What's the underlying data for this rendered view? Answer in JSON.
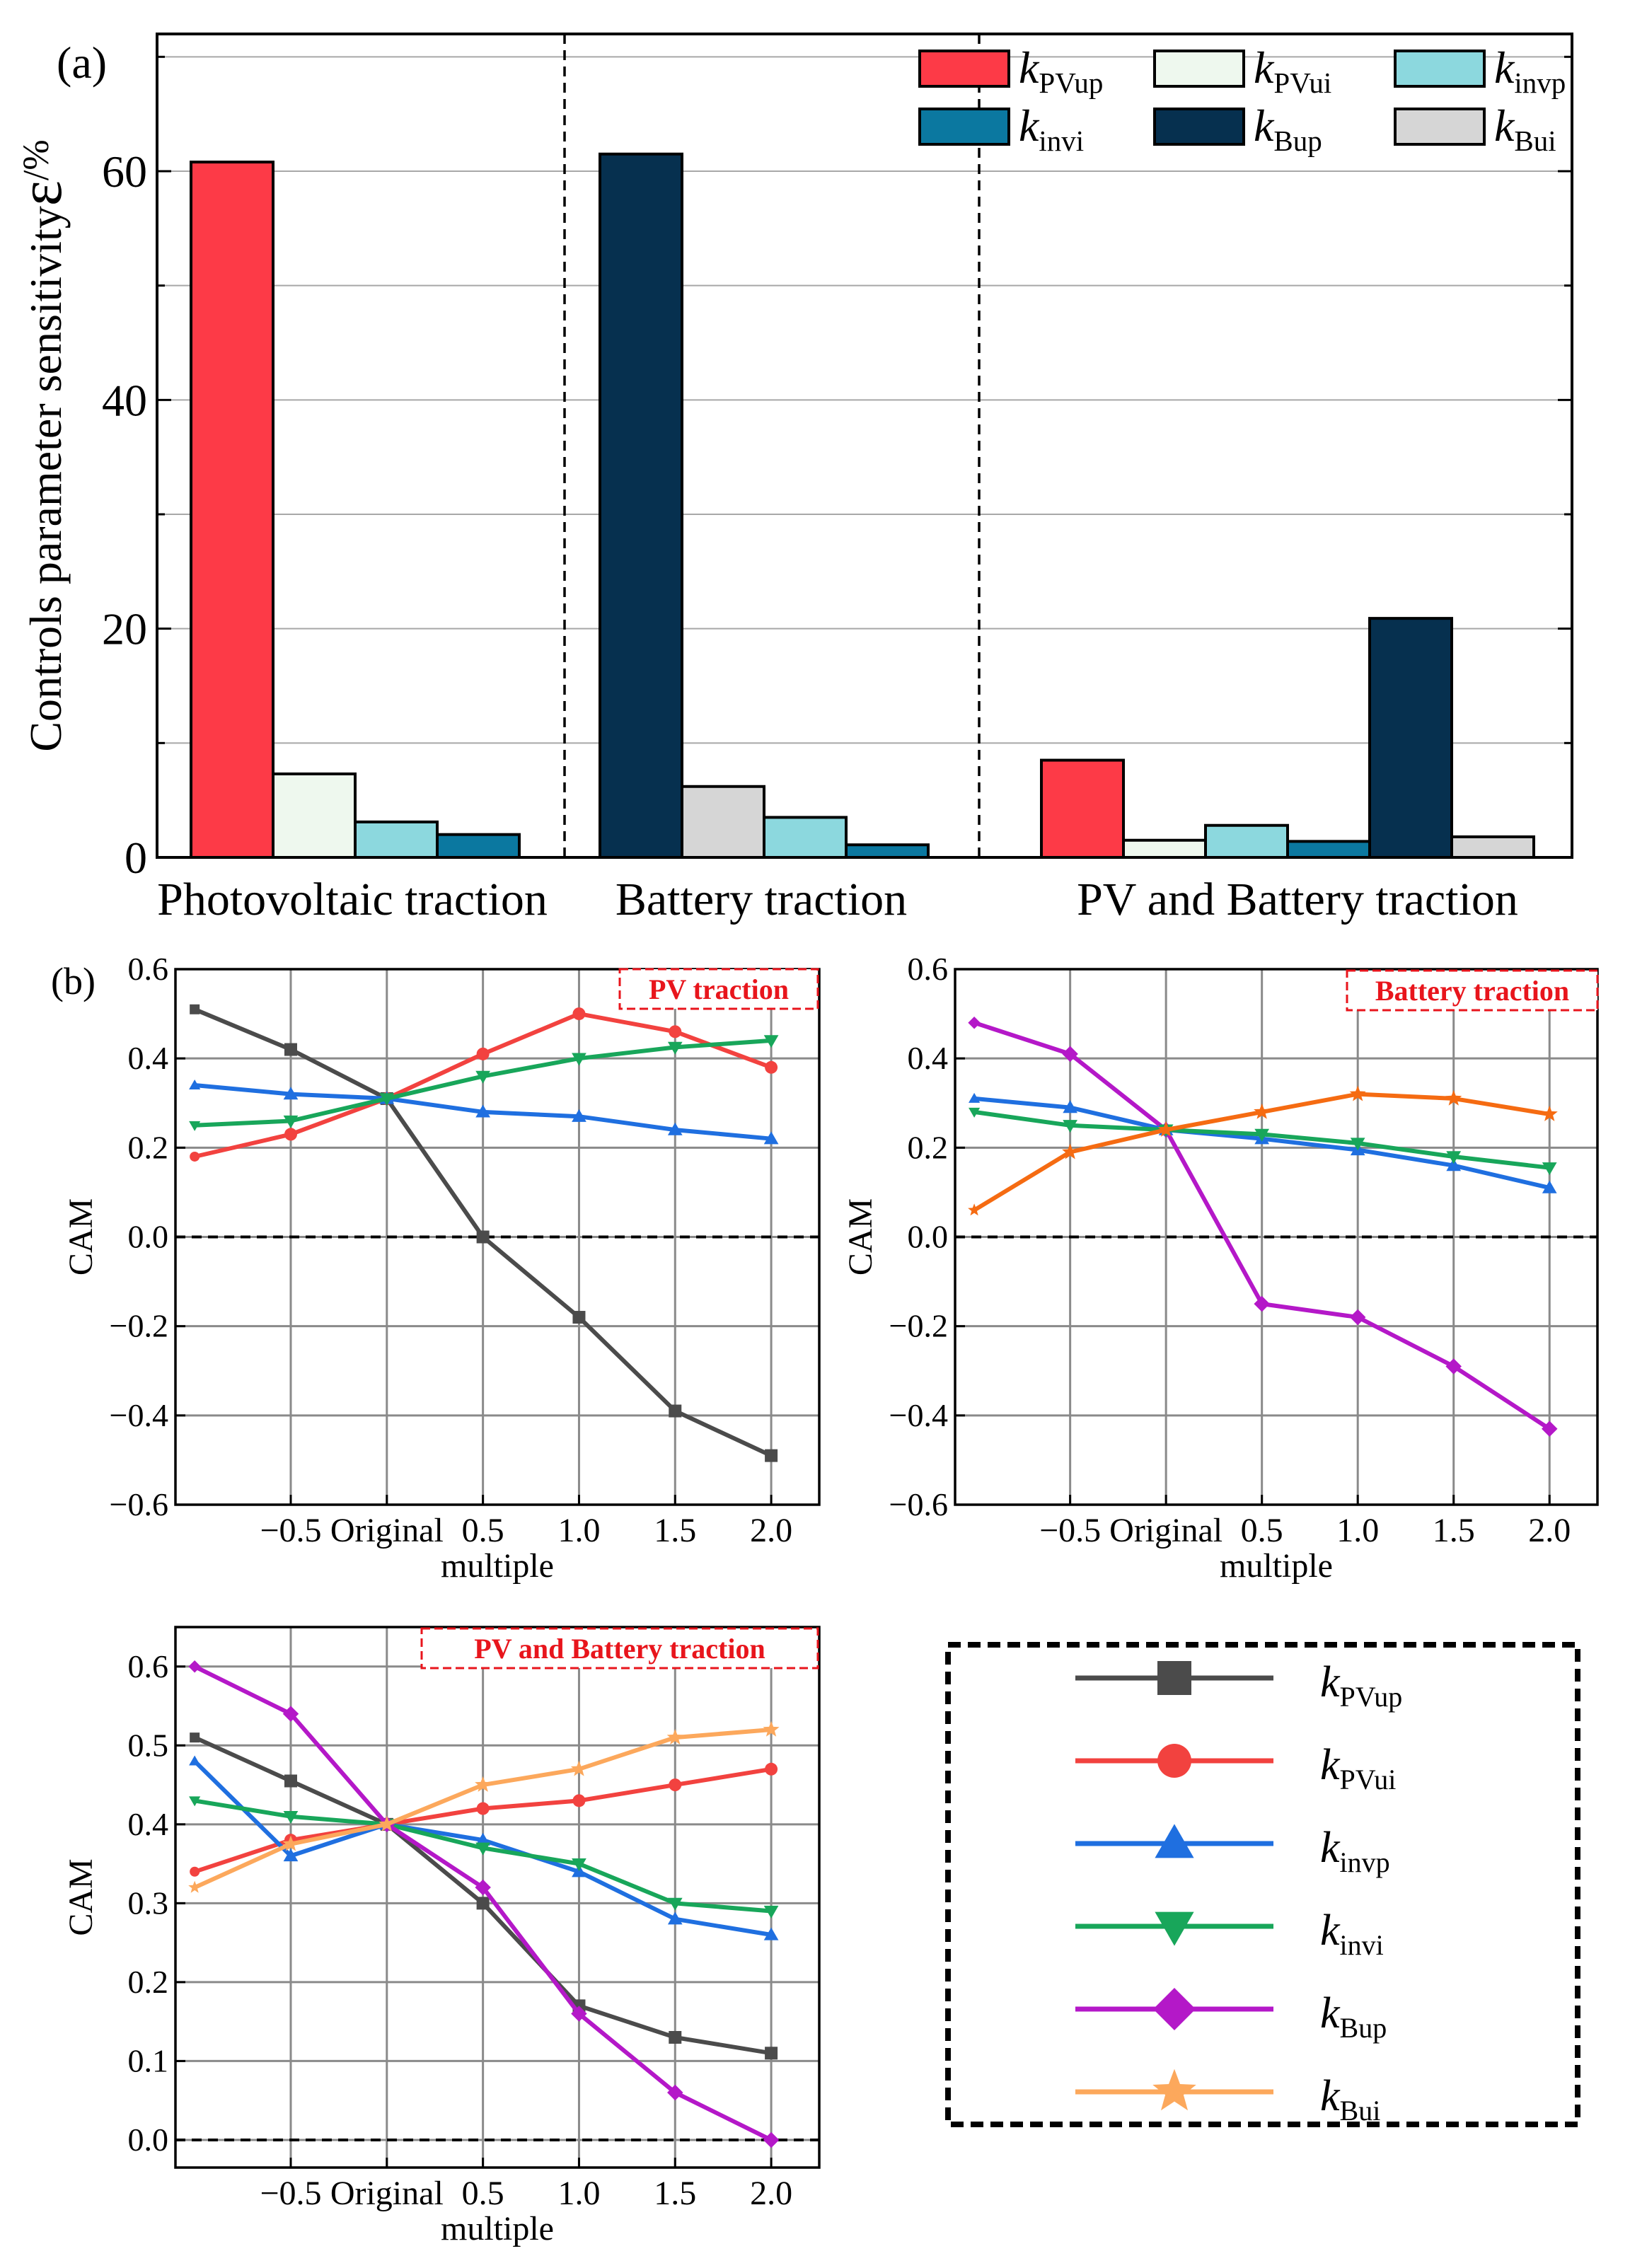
{
  "panel_labels": {
    "a": "(a)",
    "b": "(b)"
  },
  "colors": {
    "kPVup": "#fd3a47",
    "kPVui": "#eef8ee",
    "kinvp": "#8cd8de",
    "kinvi": "#0b78a0",
    "kBup": "#06304f",
    "kBui": "#d6d6d6",
    "line_kPVup": "#4b4b4b",
    "line_kPVui": "#f2423f",
    "line_kinvp": "#1f6fe0",
    "line_kinvi": "#18a65a",
    "line_kBup": "#b418c8",
    "line_kBui": "#fca85c",
    "line_battery_kBui": "#f56b12",
    "tag": "#e8151c"
  },
  "legend": {
    "kPVup": {
      "base": "k",
      "sub": "PVup"
    },
    "kPVui": {
      "base": "k",
      "sub": "PVui"
    },
    "kinvp": {
      "base": "k",
      "sub": "invp"
    },
    "kinvi": {
      "base": "k",
      "sub": "invi"
    },
    "kBup": {
      "base": "k",
      "sub": "Bup"
    },
    "kBui": {
      "base": "k",
      "sub": "Bui"
    }
  },
  "chart_data": [
    {
      "type": "bar",
      "id": "a",
      "ylabel": "Controls parameter sensitivity",
      "ylabel_symbol": "ε",
      "ylabel_unit": "/%",
      "ylim": [
        0,
        72
      ],
      "yticks": [
        "0",
        "20",
        "40",
        "60"
      ],
      "grid": true,
      "legend_position": "top-right",
      "categories": [
        "Photovoltaic traction",
        "Battery traction",
        "PV and Battery traction"
      ],
      "groups": [
        {
          "category": "Photovoltaic traction",
          "bars": [
            {
              "key": "kPVup",
              "value": 60.8
            },
            {
              "key": "kPVui",
              "value": 7.3
            },
            {
              "key": "kinvp",
              "value": 3.1
            },
            {
              "key": "kinvi",
              "value": 2.0
            }
          ]
        },
        {
          "category": "Battery traction",
          "bars": [
            {
              "key": "kBup",
              "value": 61.5
            },
            {
              "key": "kBui",
              "value": 6.2
            },
            {
              "key": "kinvp",
              "value": 3.5
            },
            {
              "key": "kinvi",
              "value": 1.1
            }
          ]
        },
        {
          "category": "PV and Battery traction",
          "bars": [
            {
              "key": "kPVup",
              "value": 8.5
            },
            {
              "key": "kPVui",
              "value": 1.5
            },
            {
              "key": "kinvp",
              "value": 2.8
            },
            {
              "key": "kinvi",
              "value": 1.4
            },
            {
              "key": "kBup",
              "value": 20.9
            },
            {
              "key": "kBui",
              "value": 1.8
            }
          ]
        }
      ]
    },
    {
      "type": "line",
      "id": "b1",
      "tag": "PV traction",
      "xlabel": "multiple",
      "ylabel": "CAM",
      "x": [
        -1,
        -0.5,
        0,
        0.5,
        1.0,
        1.5,
        2.0
      ],
      "xticks": [
        "-0.5",
        "Original",
        "0.5",
        "1.0",
        "1.5",
        "2.0"
      ],
      "xlim": [
        -1.1,
        2.25
      ],
      "ylim": [
        -0.6,
        0.6
      ],
      "yticks": [
        "-0.6",
        "-0.4",
        "-0.2",
        "0.0",
        "0.2",
        "0.4",
        "0.6"
      ],
      "grid": true,
      "series": [
        {
          "key": "kPVup",
          "marker": "square",
          "values": [
            0.51,
            0.42,
            0.31,
            0.0,
            -0.18,
            -0.39,
            -0.49
          ]
        },
        {
          "key": "kPVui",
          "marker": "circle",
          "values": [
            0.18,
            0.23,
            0.31,
            0.41,
            0.5,
            0.46,
            0.38
          ]
        },
        {
          "key": "kinvp",
          "marker": "triangle-up",
          "values": [
            0.34,
            0.32,
            0.31,
            0.28,
            0.27,
            0.24,
            0.22
          ]
        },
        {
          "key": "kinvi",
          "marker": "triangle-down",
          "values": [
            0.25,
            0.26,
            0.31,
            0.36,
            0.4,
            0.425,
            0.44
          ]
        }
      ]
    },
    {
      "type": "line",
      "id": "b2",
      "tag": "Battery traction",
      "xlabel": "multiple",
      "ylabel": "CAM",
      "x": [
        -1,
        -0.5,
        0,
        0.5,
        1.0,
        1.5,
        2.0
      ],
      "xticks": [
        "-0.5",
        "Original",
        "0.5",
        "1.0",
        "1.5",
        "2.0"
      ],
      "xlim": [
        -1.1,
        2.25
      ],
      "ylim": [
        -0.6,
        0.6
      ],
      "yticks": [
        "-0.6",
        "-0.4",
        "-0.2",
        "0.0",
        "0.2",
        "0.4",
        "0.6"
      ],
      "grid": true,
      "series": [
        {
          "key": "kBup",
          "marker": "diamond",
          "values": [
            0.48,
            0.41,
            0.24,
            -0.15,
            -0.18,
            -0.29,
            -0.43
          ]
        },
        {
          "key": "kinvp",
          "marker": "triangle-up",
          "values": [
            0.31,
            0.29,
            0.24,
            0.22,
            0.195,
            0.16,
            0.11
          ]
        },
        {
          "key": "kinvi",
          "marker": "triangle-down",
          "values": [
            0.28,
            0.25,
            0.24,
            0.23,
            0.21,
            0.18,
            0.155
          ]
        },
        {
          "key": "kBui",
          "marker": "star",
          "color_key": "line_battery_kBui",
          "values": [
            0.06,
            0.19,
            0.24,
            0.28,
            0.32,
            0.31,
            0.275
          ]
        }
      ]
    },
    {
      "type": "line",
      "id": "b3",
      "tag": "PV and Battery traction",
      "xlabel": "multiple",
      "ylabel": "CAM",
      "x": [
        -1,
        -0.5,
        0,
        0.5,
        1.0,
        1.5,
        2.0
      ],
      "xticks": [
        "-0.5",
        "Original",
        "0.5",
        "1.0",
        "1.5",
        "2.0"
      ],
      "xlim": [
        -1.1,
        2.25
      ],
      "ylim": [
        -0.035,
        0.65
      ],
      "yticks": [
        "0.0",
        "0.1",
        "0.2",
        "0.3",
        "0.4",
        "0.5",
        "0.6"
      ],
      "grid": true,
      "legend_position": "separate-box-right",
      "series": [
        {
          "key": "kPVup",
          "marker": "square",
          "values": [
            0.51,
            0.455,
            0.4,
            0.3,
            0.17,
            0.13,
            0.11
          ]
        },
        {
          "key": "kPVui",
          "marker": "circle",
          "values": [
            0.34,
            0.38,
            0.4,
            0.42,
            0.43,
            0.45,
            0.47
          ]
        },
        {
          "key": "kinvp",
          "marker": "triangle-up",
          "values": [
            0.48,
            0.36,
            0.4,
            0.38,
            0.34,
            0.28,
            0.26
          ]
        },
        {
          "key": "kinvi",
          "marker": "triangle-down",
          "values": [
            0.43,
            0.41,
            0.4,
            0.37,
            0.35,
            0.3,
            0.29
          ]
        },
        {
          "key": "kBup",
          "marker": "diamond",
          "values": [
            0.6,
            0.54,
            0.4,
            0.32,
            0.16,
            0.06,
            0.0
          ]
        },
        {
          "key": "kBui",
          "marker": "star",
          "values": [
            0.32,
            0.375,
            0.4,
            0.45,
            0.47,
            0.51,
            0.52
          ]
        }
      ]
    }
  ]
}
